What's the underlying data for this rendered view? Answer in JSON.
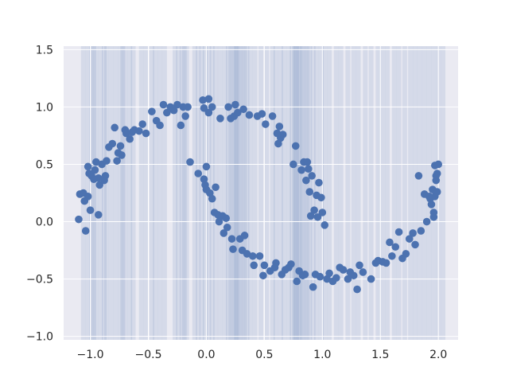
{
  "chart_data": {
    "type": "scatter",
    "title": "",
    "xlabel": "",
    "ylabel": "",
    "xlim": [
      -1.23,
      2.17
    ],
    "ylim": [
      -1.03,
      1.53
    ],
    "grid": true,
    "style": "seaborn-darkgrid",
    "x_ticks": [
      "−1.0",
      "−0.5",
      "0.0",
      "0.5",
      "1.0",
      "1.5",
      "2.0"
    ],
    "x_tick_values": [
      -1.0,
      -0.5,
      0.0,
      0.5,
      1.0,
      1.5,
      2.0
    ],
    "y_ticks": [
      "−1.0",
      "−0.5",
      "0.0",
      "0.5",
      "1.0",
      "1.5"
    ],
    "y_tick_values": [
      -1.0,
      -0.5,
      0.0,
      0.5,
      1.0,
      1.5
    ],
    "colors": {
      "axes_bg": "#eaeaf2",
      "grid": "#ffffff",
      "marker": "#4c72b0",
      "band": "#4c72b0",
      "tick_text": "#262626"
    },
    "vertical_lines_x": [
      -1.06,
      -1.02,
      -0.99,
      -0.97,
      -0.95,
      -0.91,
      -0.88,
      -0.86,
      -0.82,
      -0.78,
      -0.74,
      -0.72,
      -0.7,
      -0.66,
      -0.63,
      -0.56,
      -0.52,
      -0.47,
      -0.44,
      -0.4,
      -0.36,
      -0.27,
      -0.24,
      -0.21,
      -0.19,
      -0.17,
      -0.1,
      -0.07,
      -0.04,
      -0.01,
      0.02,
      0.05,
      0.08,
      0.12,
      0.16,
      0.19,
      0.21,
      0.23,
      0.25,
      0.26,
      0.27,
      0.29,
      0.31,
      0.33,
      0.35,
      0.38,
      0.42,
      0.47,
      0.52,
      0.57,
      0.6,
      0.64,
      0.67,
      0.71,
      0.74,
      0.76,
      0.77,
      0.78,
      0.8,
      0.81,
      0.83,
      0.85,
      0.87,
      0.89,
      0.92,
      0.95,
      0.99,
      1.02,
      1.06,
      1.12,
      1.16,
      1.22,
      1.27,
      1.31,
      1.37,
      1.42,
      1.48,
      1.52,
      1.56,
      1.62,
      1.66,
      1.71,
      1.76,
      1.8,
      1.84,
      1.88,
      1.92,
      1.96,
      2.0,
      2.04
    ],
    "points": [
      [
        -1.1,
        0.02
      ],
      [
        -1.09,
        0.24
      ],
      [
        -1.06,
        0.25
      ],
      [
        -1.05,
        0.18
      ],
      [
        -1.04,
        -0.08
      ],
      [
        -1.02,
        0.22
      ],
      [
        -1.02,
        0.48
      ],
      [
        -1.01,
        0.42
      ],
      [
        -1.0,
        0.1
      ],
      [
        -0.99,
        0.4
      ],
      [
        -0.97,
        0.37
      ],
      [
        -0.96,
        0.45
      ],
      [
        -0.95,
        0.52
      ],
      [
        -0.93,
        0.38
      ],
      [
        -0.93,
        0.06
      ],
      [
        -0.92,
        0.32
      ],
      [
        -0.9,
        0.5
      ],
      [
        -0.88,
        0.36
      ],
      [
        -0.87,
        0.4
      ],
      [
        -0.86,
        0.53
      ],
      [
        -0.84,
        0.65
      ],
      [
        -0.81,
        0.68
      ],
      [
        -0.79,
        0.82
      ],
      [
        -0.77,
        0.53
      ],
      [
        -0.76,
        0.6
      ],
      [
        -0.74,
        0.66
      ],
      [
        -0.73,
        0.58
      ],
      [
        -0.7,
        0.8
      ],
      [
        -0.69,
        0.77
      ],
      [
        -0.66,
        0.72
      ],
      [
        -0.64,
        0.78
      ],
      [
        -0.62,
        0.8
      ],
      [
        -0.58,
        0.79
      ],
      [
        -0.55,
        0.85
      ],
      [
        -0.52,
        0.77
      ],
      [
        -0.47,
        0.96
      ],
      [
        -0.43,
        0.88
      ],
      [
        -0.4,
        0.84
      ],
      [
        -0.37,
        1.02
      ],
      [
        -0.34,
        0.95
      ],
      [
        -0.31,
        1.0
      ],
      [
        -0.28,
        0.97
      ],
      [
        -0.25,
        1.02
      ],
      [
        -0.22,
        0.84
      ],
      [
        -0.2,
        1.0
      ],
      [
        -0.18,
        0.92
      ],
      [
        -0.16,
        1.0
      ],
      [
        -0.14,
        0.52
      ],
      [
        -0.07,
        0.42
      ],
      [
        -0.03,
        1.06
      ],
      [
        -0.02,
        0.99
      ],
      [
        -0.02,
        0.37
      ],
      [
        -0.01,
        0.32
      ],
      [
        0.0,
        0.48
      ],
      [
        0.0,
        0.28
      ],
      [
        0.02,
        1.07
      ],
      [
        0.02,
        0.95
      ],
      [
        0.03,
        0.25
      ],
      [
        0.05,
        0.2
      ],
      [
        0.05,
        1.0
      ],
      [
        0.07,
        0.08
      ],
      [
        0.08,
        0.3
      ],
      [
        0.1,
        0.06
      ],
      [
        0.11,
        0.0
      ],
      [
        0.12,
        0.9
      ],
      [
        0.14,
        0.05
      ],
      [
        0.15,
        -0.1
      ],
      [
        0.17,
        0.03
      ],
      [
        0.18,
        -0.05
      ],
      [
        0.19,
        1.0
      ],
      [
        0.21,
        0.9
      ],
      [
        0.22,
        -0.15
      ],
      [
        0.23,
        -0.24
      ],
      [
        0.24,
        0.92
      ],
      [
        0.25,
        1.02
      ],
      [
        0.27,
        0.95
      ],
      [
        0.29,
        -0.15
      ],
      [
        0.31,
        -0.25
      ],
      [
        0.32,
        0.98
      ],
      [
        0.33,
        -0.12
      ],
      [
        0.35,
        -0.28
      ],
      [
        0.37,
        0.93
      ],
      [
        0.4,
        -0.3
      ],
      [
        0.41,
        -0.38
      ],
      [
        0.44,
        0.92
      ],
      [
        0.46,
        -0.3
      ],
      [
        0.48,
        0.94
      ],
      [
        0.49,
        -0.47
      ],
      [
        0.5,
        -0.38
      ],
      [
        0.51,
        0.85
      ],
      [
        0.55,
        -0.43
      ],
      [
        0.57,
        0.92
      ],
      [
        0.59,
        -0.4
      ],
      [
        0.6,
        -0.36
      ],
      [
        0.61,
        0.77
      ],
      [
        0.62,
        0.68
      ],
      [
        0.63,
        0.83
      ],
      [
        0.64,
        0.73
      ],
      [
        0.65,
        -0.46
      ],
      [
        0.66,
        0.76
      ],
      [
        0.68,
        -0.42
      ],
      [
        0.71,
        -0.4
      ],
      [
        0.73,
        -0.37
      ],
      [
        0.75,
        0.5
      ],
      [
        0.77,
        0.66
      ],
      [
        0.78,
        -0.52
      ],
      [
        0.8,
        -0.43
      ],
      [
        0.82,
        0.45
      ],
      [
        0.83,
        -0.47
      ],
      [
        0.84,
        0.52
      ],
      [
        0.85,
        -0.46
      ],
      [
        0.86,
        0.36
      ],
      [
        0.87,
        0.52
      ],
      [
        0.88,
        0.46
      ],
      [
        0.89,
        0.26
      ],
      [
        0.9,
        0.05
      ],
      [
        0.91,
        0.4
      ],
      [
        0.92,
        -0.57
      ],
      [
        0.93,
        0.1
      ],
      [
        0.94,
        -0.46
      ],
      [
        0.95,
        0.23
      ],
      [
        0.96,
        0.04
      ],
      [
        0.97,
        0.34
      ],
      [
        0.98,
        -0.48
      ],
      [
        0.99,
        0.21
      ],
      [
        1.0,
        0.08
      ],
      [
        1.02,
        -0.03
      ],
      [
        1.04,
        -0.5
      ],
      [
        1.06,
        -0.45
      ],
      [
        1.09,
        -0.52
      ],
      [
        1.12,
        -0.49
      ],
      [
        1.15,
        -0.4
      ],
      [
        1.18,
        -0.42
      ],
      [
        1.22,
        -0.5
      ],
      [
        1.24,
        -0.44
      ],
      [
        1.27,
        -0.47
      ],
      [
        1.3,
        -0.59
      ],
      [
        1.32,
        -0.38
      ],
      [
        1.35,
        -0.44
      ],
      [
        1.42,
        -0.5
      ],
      [
        1.46,
        -0.36
      ],
      [
        1.48,
        -0.34
      ],
      [
        1.52,
        -0.35
      ],
      [
        1.55,
        -0.36
      ],
      [
        1.58,
        -0.18
      ],
      [
        1.6,
        -0.3
      ],
      [
        1.63,
        -0.22
      ],
      [
        1.66,
        -0.09
      ],
      [
        1.69,
        -0.32
      ],
      [
        1.72,
        -0.28
      ],
      [
        1.75,
        -0.15
      ],
      [
        1.78,
        -0.1
      ],
      [
        1.8,
        -0.2
      ],
      [
        1.83,
        0.4
      ],
      [
        1.85,
        -0.08
      ],
      [
        1.88,
        0.24
      ],
      [
        1.9,
        0.0
      ],
      [
        1.92,
        0.22
      ],
      [
        1.94,
        0.15
      ],
      [
        1.95,
        0.28
      ],
      [
        1.96,
        0.08
      ],
      [
        1.97,
        0.49
      ],
      [
        1.98,
        0.36
      ],
      [
        1.99,
        0.42
      ],
      [
        2.0,
        0.5
      ],
      [
        1.97,
        0.22
      ],
      [
        1.93,
        0.2
      ],
      [
        1.99,
        0.26
      ],
      [
        1.96,
        0.04
      ],
      [
        1.98,
        0.4
      ]
    ]
  }
}
